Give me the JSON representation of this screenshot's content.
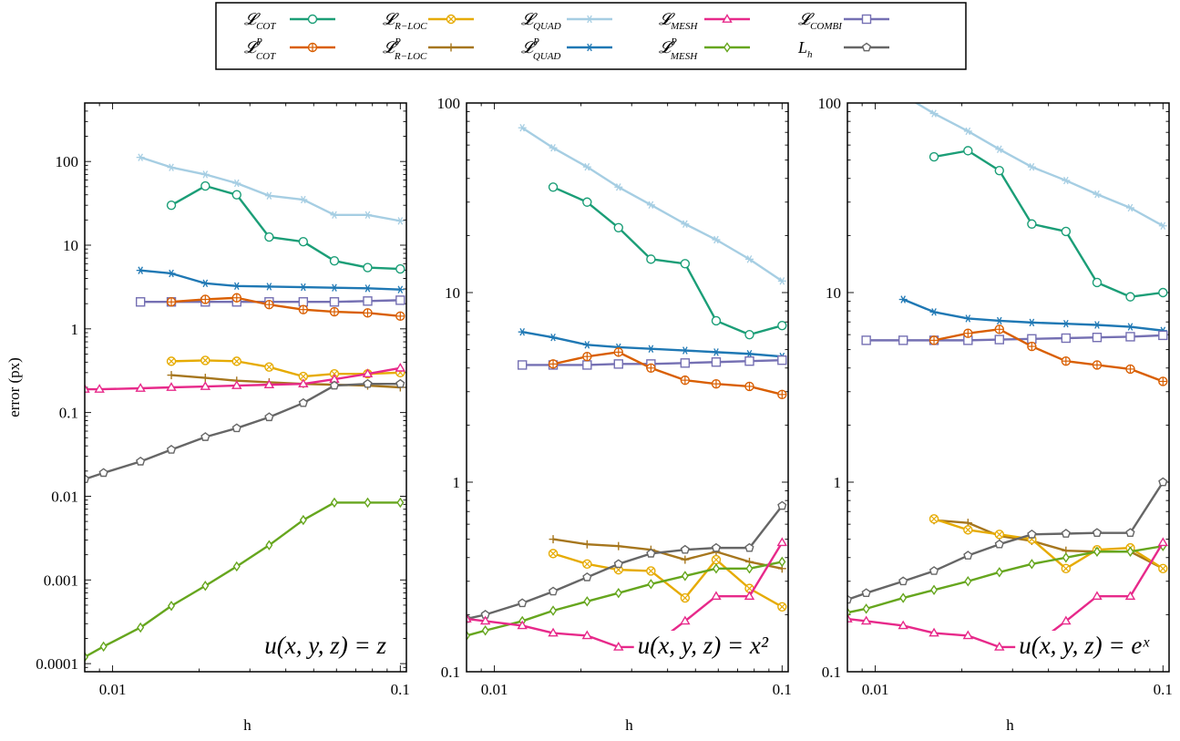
{
  "legend": {
    "entries": [
      {
        "key": "cot",
        "text": "𝓛",
        "sub": "COT",
        "sup": "",
        "color": "#1b9e77",
        "marker": "circle"
      },
      {
        "key": "rloc",
        "text": "𝓛",
        "sub": "R−LOC",
        "sup": "",
        "color": "#1b9e77",
        "marker": "circle"
      },
      {
        "key": "quad",
        "text": "𝓛",
        "sub": "QUAD",
        "sup": "",
        "color": "#e6ab02",
        "marker": "otimes"
      },
      {
        "key": "mesh",
        "text": "𝓛",
        "sub": "MESH",
        "sup": "",
        "color": "#a6cee3",
        "marker": "star"
      },
      {
        "key": "combi",
        "text": "𝓛",
        "sub": "COMBI",
        "sup": "",
        "color": "#e7298a",
        "marker": "triangle"
      },
      {
        "key": "cotp",
        "text": "𝓛",
        "sub": "COT",
        "sup": "P",
        "color": "#d95f02",
        "marker": "oplus"
      },
      {
        "key": "rlocp",
        "text": "𝓛",
        "sub": "R−LOC",
        "sup": "P",
        "color": "#a6761d",
        "marker": "plus"
      },
      {
        "key": "quadp",
        "text": "𝓛",
        "sub": "QUAD",
        "sup": "P",
        "color": "#1f78b4",
        "marker": "star"
      },
      {
        "key": "meshp",
        "text": "𝓛",
        "sub": "MESH",
        "sup": "P",
        "color": "#66a61e",
        "marker": "diamond"
      },
      {
        "key": "lh",
        "text": "L",
        "sub": "h",
        "sup": "",
        "color": "#666666",
        "marker": "pentagon"
      }
    ],
    "swatches": [
      {
        "color": "#1b9e77",
        "marker": "circle"
      },
      {
        "color": "#e6ab02",
        "marker": "otimes"
      },
      {
        "color": "#a6cee3",
        "marker": "star"
      },
      {
        "color": "#e7298a",
        "marker": "triangle"
      },
      {
        "color": "#7570b3",
        "marker": "square"
      },
      {
        "color": "#d95f02",
        "marker": "oplus"
      },
      {
        "color": "#a6761d",
        "marker": "plus"
      },
      {
        "color": "#1f78b4",
        "marker": "star"
      },
      {
        "color": "#66a61e",
        "marker": "diamond"
      },
      {
        "color": "#666666",
        "marker": "pentagon"
      }
    ]
  },
  "chart_data": [
    {
      "type": "line",
      "title": "",
      "annotation": "u(x, y, z) = z",
      "xlabel": "h",
      "ylabel": "error (px)",
      "xscale": "log",
      "yscale": "log",
      "xlim": [
        0.008,
        0.105
      ],
      "ylim": [
        8e-05,
        500
      ],
      "xticks": [
        {
          "v": 0.01,
          "label": "0.01"
        },
        {
          "v": 0.1,
          "label": "0.1"
        }
      ],
      "yticks": [
        {
          "v": 0.0001,
          "label": "0.0001"
        },
        {
          "v": 0.001,
          "label": "0.001"
        },
        {
          "v": 0.01,
          "label": "0.01"
        },
        {
          "v": 0.1,
          "label": "0.1"
        },
        {
          "v": 1,
          "label": "1"
        },
        {
          "v": 10,
          "label": "10"
        },
        {
          "v": 100,
          "label": "100"
        }
      ],
      "series": [
        {
          "style": "mesh",
          "x": [
            0.0125,
            0.016,
            0.021,
            0.027,
            0.035,
            0.046,
            0.059,
            0.077,
            0.1
          ],
          "y": [
            112,
            85,
            70,
            55,
            39,
            35,
            23,
            23,
            19.5
          ]
        },
        {
          "style": "cot",
          "x": [
            0.016,
            0.021,
            0.027,
            0.035,
            0.046,
            0.059,
            0.077,
            0.1
          ],
          "y": [
            30,
            51,
            40,
            12.5,
            11,
            6.5,
            5.4,
            5.2
          ]
        },
        {
          "style": "quadp",
          "x": [
            0.0125,
            0.016,
            0.021,
            0.027,
            0.035,
            0.046,
            0.059,
            0.077,
            0.1
          ],
          "y": [
            5.0,
            4.6,
            3.5,
            3.25,
            3.2,
            3.15,
            3.1,
            3.05,
            2.95
          ]
        },
        {
          "style": "combi_sq",
          "x": [
            0.0125,
            0.016,
            0.021,
            0.027,
            0.035,
            0.046,
            0.059,
            0.077,
            0.1
          ],
          "y": [
            2.1,
            2.1,
            2.1,
            2.1,
            2.1,
            2.1,
            2.1,
            2.15,
            2.2
          ]
        },
        {
          "style": "cotp",
          "x": [
            0.016,
            0.021,
            0.027,
            0.035,
            0.046,
            0.059,
            0.077,
            0.1
          ],
          "y": [
            2.1,
            2.25,
            2.35,
            1.95,
            1.7,
            1.6,
            1.55,
            1.42
          ]
        },
        {
          "style": "quad",
          "x": [
            0.016,
            0.021,
            0.027,
            0.035,
            0.046,
            0.059,
            0.077,
            0.1
          ],
          "y": [
            0.41,
            0.42,
            0.41,
            0.35,
            0.27,
            0.29,
            0.29,
            0.3
          ]
        },
        {
          "style": "rlocp",
          "x": [
            0.016,
            0.021,
            0.027,
            0.035,
            0.046,
            0.059,
            0.077,
            0.1
          ],
          "y": [
            0.28,
            0.26,
            0.24,
            0.23,
            0.22,
            0.215,
            0.21,
            0.2
          ]
        },
        {
          "style": "combi",
          "x": [
            0.008,
            0.009,
            0.0125,
            0.016,
            0.021,
            0.027,
            0.035,
            0.046,
            0.059,
            0.077,
            0.1
          ],
          "y": [
            0.19,
            0.19,
            0.195,
            0.2,
            0.205,
            0.21,
            0.215,
            0.22,
            0.25,
            0.29,
            0.34
          ]
        },
        {
          "style": "lh",
          "x": [
            0.008,
            0.0093,
            0.0125,
            0.016,
            0.021,
            0.027,
            0.035,
            0.046,
            0.059,
            0.077,
            0.1
          ],
          "y": [
            0.016,
            0.019,
            0.026,
            0.036,
            0.051,
            0.065,
            0.088,
            0.13,
            0.21,
            0.22,
            0.22
          ]
        },
        {
          "style": "meshp",
          "x": [
            0.008,
            0.0093,
            0.0125,
            0.016,
            0.021,
            0.027,
            0.035,
            0.046,
            0.059,
            0.077,
            0.1
          ],
          "y": [
            0.00012,
            0.00016,
            0.00027,
            0.00049,
            0.00085,
            0.00145,
            0.0026,
            0.0052,
            0.0084,
            0.0084,
            0.0084
          ]
        }
      ]
    },
    {
      "type": "line",
      "title": "",
      "annotation": "u(x, y, z) = x²",
      "xlabel": "h",
      "ylabel": "",
      "xscale": "log",
      "yscale": "log",
      "xlim": [
        0.008,
        0.105
      ],
      "ylim": [
        0.1,
        100
      ],
      "xticks": [
        {
          "v": 0.01,
          "label": "0.01"
        },
        {
          "v": 0.1,
          "label": "0.1"
        }
      ],
      "yticks": [
        {
          "v": 0.1,
          "label": "0.1"
        },
        {
          "v": 1,
          "label": "1"
        },
        {
          "v": 10,
          "label": "10"
        },
        {
          "v": 100,
          "label": "100"
        }
      ],
      "series": [
        {
          "style": "mesh",
          "x": [
            0.0125,
            0.016,
            0.021,
            0.027,
            0.035,
            0.046,
            0.059,
            0.077,
            0.1
          ],
          "y": [
            74,
            58,
            46,
            36,
            29,
            23,
            19,
            15,
            11.5
          ]
        },
        {
          "style": "cot",
          "x": [
            0.016,
            0.021,
            0.027,
            0.035,
            0.046,
            0.059,
            0.077,
            0.1
          ],
          "y": [
            36,
            30,
            22,
            15,
            14.2,
            7.1,
            6.0,
            6.7
          ]
        },
        {
          "style": "quadp",
          "x": [
            0.0125,
            0.016,
            0.021,
            0.027,
            0.035,
            0.046,
            0.059,
            0.077,
            0.1
          ],
          "y": [
            6.2,
            5.8,
            5.3,
            5.15,
            5.05,
            4.95,
            4.85,
            4.75,
            4.6
          ]
        },
        {
          "style": "combi_sq",
          "x": [
            0.0125,
            0.016,
            0.021,
            0.027,
            0.035,
            0.046,
            0.059,
            0.077,
            0.1
          ],
          "y": [
            4.15,
            4.15,
            4.15,
            4.2,
            4.2,
            4.25,
            4.3,
            4.35,
            4.4
          ]
        },
        {
          "style": "cotp",
          "x": [
            0.016,
            0.021,
            0.027,
            0.035,
            0.046,
            0.059,
            0.077,
            0.1
          ],
          "y": [
            4.2,
            4.6,
            4.85,
            4.0,
            3.45,
            3.3,
            3.2,
            2.9
          ]
        },
        {
          "style": "rlocp",
          "x": [
            0.016,
            0.021,
            0.027,
            0.035,
            0.046,
            0.059,
            0.077,
            0.1
          ],
          "y": [
            0.5,
            0.47,
            0.46,
            0.44,
            0.39,
            0.43,
            0.38,
            0.35
          ]
        },
        {
          "style": "quad",
          "x": [
            0.016,
            0.021,
            0.027,
            0.035,
            0.046,
            0.059,
            0.077,
            0.1
          ],
          "y": [
            0.42,
            0.37,
            0.345,
            0.34,
            0.245,
            0.39,
            0.275,
            0.22
          ]
        },
        {
          "style": "lh",
          "x": [
            0.008,
            0.0093,
            0.0125,
            0.016,
            0.021,
            0.027,
            0.035,
            0.046,
            0.059,
            0.077,
            0.1
          ],
          "y": [
            0.19,
            0.2,
            0.23,
            0.265,
            0.315,
            0.37,
            0.42,
            0.44,
            0.45,
            0.45,
            0.75
          ]
        },
        {
          "style": "meshp",
          "x": [
            0.008,
            0.0093,
            0.0125,
            0.016,
            0.021,
            0.027,
            0.035,
            0.046,
            0.059,
            0.077,
            0.1
          ],
          "y": [
            0.155,
            0.165,
            0.185,
            0.21,
            0.235,
            0.26,
            0.29,
            0.32,
            0.35,
            0.35,
            0.38
          ]
        },
        {
          "style": "combi",
          "x": [
            0.008,
            0.0093,
            0.0125,
            0.016,
            0.021,
            0.027,
            0.035,
            0.046,
            0.059,
            0.077,
            0.1
          ],
          "y": [
            0.19,
            0.185,
            0.175,
            0.16,
            0.155,
            0.135,
            0.135,
            0.185,
            0.25,
            0.25,
            0.48
          ]
        }
      ]
    },
    {
      "type": "line",
      "title": "",
      "annotation": "u(x, y, z) = eˣ",
      "xlabel": "h",
      "ylabel": "",
      "xscale": "log",
      "yscale": "log",
      "xlim": [
        0.008,
        0.105
      ],
      "ylim": [
        0.1,
        100
      ],
      "xticks": [
        {
          "v": 0.01,
          "label": "0.01"
        },
        {
          "v": 0.1,
          "label": "0.1"
        }
      ],
      "yticks": [
        {
          "v": 0.1,
          "label": "0.1"
        },
        {
          "v": 1,
          "label": "1"
        },
        {
          "v": 10,
          "label": "10"
        },
        {
          "v": 100,
          "label": "100"
        }
      ],
      "series": [
        {
          "style": "mesh",
          "x": [
            0.0125,
            0.016,
            0.021,
            0.027,
            0.035,
            0.046,
            0.059,
            0.077,
            0.1
          ],
          "y": [
            110,
            88,
            71,
            57,
            46,
            39,
            33,
            28,
            22.5
          ]
        },
        {
          "style": "cot",
          "x": [
            0.016,
            0.021,
            0.027,
            0.035,
            0.046,
            0.059,
            0.077,
            0.1
          ],
          "y": [
            52,
            56,
            44,
            23,
            21,
            11.3,
            9.5,
            10
          ]
        },
        {
          "style": "quadp",
          "x": [
            0.0125,
            0.016,
            0.021,
            0.027,
            0.035,
            0.046,
            0.059,
            0.077,
            0.1
          ],
          "y": [
            9.2,
            7.9,
            7.3,
            7.1,
            6.95,
            6.85,
            6.75,
            6.6,
            6.3
          ]
        },
        {
          "style": "combi_sq",
          "x": [
            0.0093,
            0.0125,
            0.016,
            0.021,
            0.027,
            0.035,
            0.046,
            0.059,
            0.077,
            0.1
          ],
          "y": [
            5.6,
            5.6,
            5.6,
            5.6,
            5.65,
            5.7,
            5.75,
            5.8,
            5.85,
            5.95
          ]
        },
        {
          "style": "cotp",
          "x": [
            0.016,
            0.021,
            0.027,
            0.035,
            0.046,
            0.059,
            0.077,
            0.1
          ],
          "y": [
            5.6,
            6.1,
            6.4,
            5.2,
            4.35,
            4.15,
            3.95,
            3.4
          ]
        },
        {
          "style": "rlocp",
          "x": [
            0.016,
            0.021,
            0.027,
            0.035,
            0.046,
            0.059,
            0.077,
            0.1
          ],
          "y": [
            0.63,
            0.61,
            0.52,
            0.49,
            0.435,
            0.43,
            0.43,
            0.35
          ]
        },
        {
          "style": "quad",
          "x": [
            0.016,
            0.021,
            0.027,
            0.035,
            0.046,
            0.059,
            0.077,
            0.1
          ],
          "y": [
            0.64,
            0.56,
            0.53,
            0.5,
            0.35,
            0.44,
            0.45,
            0.35
          ]
        },
        {
          "style": "lh",
          "x": [
            0.008,
            0.0093,
            0.0125,
            0.016,
            0.021,
            0.027,
            0.035,
            0.046,
            0.059,
            0.077,
            0.1
          ],
          "y": [
            0.24,
            0.26,
            0.3,
            0.34,
            0.41,
            0.47,
            0.53,
            0.535,
            0.54,
            0.54,
            1.0
          ]
        },
        {
          "style": "meshp",
          "x": [
            0.008,
            0.0093,
            0.0125,
            0.016,
            0.021,
            0.027,
            0.035,
            0.046,
            0.059,
            0.077,
            0.1
          ],
          "y": [
            0.205,
            0.215,
            0.245,
            0.27,
            0.3,
            0.335,
            0.37,
            0.4,
            0.43,
            0.43,
            0.46
          ]
        },
        {
          "style": "combi",
          "x": [
            0.008,
            0.0093,
            0.0125,
            0.016,
            0.021,
            0.027,
            0.035,
            0.046,
            0.059,
            0.077,
            0.1
          ],
          "y": [
            0.19,
            0.185,
            0.175,
            0.16,
            0.155,
            0.135,
            0.135,
            0.185,
            0.25,
            0.25,
            0.48
          ]
        }
      ]
    }
  ],
  "styles": {
    "mesh": {
      "color": "#a6cee3",
      "marker": "star"
    },
    "cot": {
      "color": "#1b9e77",
      "marker": "circle"
    },
    "quadp": {
      "color": "#1f78b4",
      "marker": "star"
    },
    "combi_sq": {
      "color": "#7570b3",
      "marker": "square"
    },
    "cotp": {
      "color": "#d95f02",
      "marker": "oplus"
    },
    "quad": {
      "color": "#e6ab02",
      "marker": "otimes"
    },
    "rlocp": {
      "color": "#a6761d",
      "marker": "plus"
    },
    "combi": {
      "color": "#e7298a",
      "marker": "triangle"
    },
    "lh": {
      "color": "#666666",
      "marker": "pentagon"
    },
    "meshp": {
      "color": "#66a61e",
      "marker": "diamond"
    }
  }
}
